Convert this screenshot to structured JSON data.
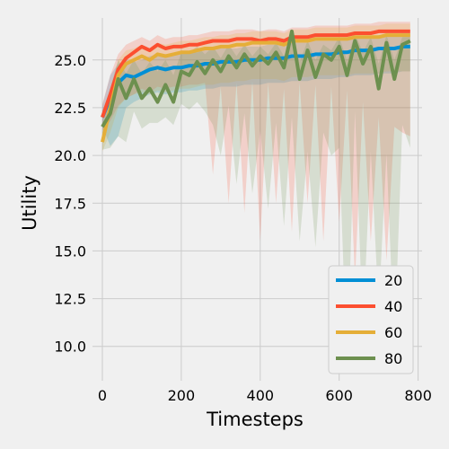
{
  "chart_data": {
    "type": "line",
    "title": "",
    "xlabel": "Timesteps",
    "ylabel": "Utility",
    "xlim": [
      -25,
      810
    ],
    "ylim": [
      8.2,
      27.2
    ],
    "x_ticks": [
      0,
      200,
      400,
      600,
      800
    ],
    "y_ticks": [
      10.0,
      12.5,
      15.0,
      17.5,
      20.0,
      22.5,
      25.0
    ],
    "x_tick_labels": [
      "0",
      "200",
      "400",
      "600",
      "800"
    ],
    "y_tick_labels": [
      "10.0",
      "12.5",
      "15.0",
      "17.5",
      "20.0",
      "22.5",
      "25.0"
    ],
    "grid": true,
    "legend": {
      "placement": "lower-right"
    },
    "x": [
      0,
      20,
      40,
      60,
      80,
      100,
      120,
      140,
      160,
      180,
      200,
      220,
      240,
      260,
      280,
      300,
      320,
      340,
      360,
      380,
      400,
      420,
      440,
      460,
      480,
      500,
      520,
      540,
      560,
      580,
      600,
      620,
      640,
      660,
      680,
      700,
      720,
      740,
      760,
      780
    ],
    "series": [
      {
        "name": "20",
        "color": "#008fd5",
        "values": [
          22.0,
          23.0,
          23.8,
          24.2,
          24.1,
          24.3,
          24.5,
          24.6,
          24.5,
          24.6,
          24.6,
          24.7,
          24.7,
          24.8,
          24.8,
          24.9,
          24.9,
          24.9,
          25.0,
          25.0,
          25.0,
          25.1,
          25.1,
          25.1,
          25.2,
          25.2,
          25.2,
          25.3,
          25.3,
          25.3,
          25.4,
          25.4,
          25.5,
          25.5,
          25.5,
          25.6,
          25.6,
          25.6,
          25.7,
          25.7
        ],
        "lower": [
          21.5,
          20.5,
          21.0,
          22.5,
          22.8,
          23.0,
          23.2,
          23.3,
          23.2,
          23.3,
          23.3,
          23.4,
          23.4,
          23.5,
          23.5,
          23.6,
          23.6,
          23.6,
          23.7,
          23.7,
          23.7,
          23.8,
          23.8,
          23.8,
          23.9,
          23.9,
          23.9,
          24.0,
          24.0,
          24.0,
          24.1,
          24.1,
          24.2,
          24.2,
          24.2,
          24.3,
          24.3,
          24.3,
          24.4,
          24.4
        ],
        "upper": [
          22.6,
          24.2,
          24.8,
          25.0,
          24.9,
          25.0,
          25.2,
          25.3,
          25.2,
          25.3,
          25.3,
          25.4,
          25.4,
          25.5,
          25.5,
          25.6,
          25.6,
          25.6,
          25.7,
          25.7,
          25.7,
          25.8,
          25.8,
          25.8,
          25.9,
          25.9,
          25.9,
          26.0,
          26.0,
          26.0,
          26.1,
          26.1,
          26.2,
          26.2,
          26.2,
          26.3,
          26.3,
          26.3,
          26.4,
          26.4
        ]
      },
      {
        "name": "40",
        "color": "#fc4f30",
        "values": [
          22.0,
          23.2,
          24.5,
          25.1,
          25.4,
          25.7,
          25.5,
          25.8,
          25.6,
          25.7,
          25.7,
          25.8,
          25.8,
          25.9,
          26.0,
          26.0,
          26.0,
          26.1,
          26.1,
          26.1,
          26.0,
          26.1,
          26.1,
          26.0,
          26.2,
          26.2,
          26.2,
          26.3,
          26.3,
          26.3,
          26.3,
          26.3,
          26.4,
          26.4,
          26.4,
          26.5,
          26.5,
          26.5,
          26.5,
          26.5
        ],
        "lower": [
          21.3,
          21.8,
          22.6,
          23.0,
          23.2,
          23.5,
          23.3,
          23.6,
          23.5,
          23.6,
          23.6,
          23.7,
          23.7,
          23.8,
          19.0,
          23.6,
          17.5,
          23.8,
          17.0,
          23.9,
          15.5,
          23.8,
          17.5,
          23.5,
          16.0,
          23.8,
          17.5,
          23.7,
          15.5,
          23.6,
          16.5,
          23.4,
          13.5,
          22.8,
          15.5,
          22.0,
          14.5,
          21.5,
          21.2,
          21.0
        ],
        "upper": [
          22.7,
          24.2,
          25.3,
          25.8,
          26.0,
          26.2,
          26.0,
          26.3,
          26.1,
          26.2,
          26.2,
          26.3,
          26.3,
          26.4,
          26.5,
          26.5,
          26.5,
          26.6,
          26.6,
          26.6,
          26.5,
          26.6,
          26.6,
          26.5,
          26.7,
          26.7,
          26.7,
          26.8,
          26.8,
          26.8,
          26.8,
          26.8,
          26.9,
          26.9,
          26.9,
          27.0,
          27.0,
          27.0,
          27.0,
          27.0
        ]
      },
      {
        "name": "60",
        "color": "#e5ae38",
        "values": [
          20.7,
          22.5,
          24.2,
          24.8,
          25.0,
          25.2,
          25.0,
          25.3,
          25.2,
          25.3,
          25.4,
          25.4,
          25.5,
          25.6,
          25.6,
          25.7,
          25.7,
          25.8,
          25.8,
          25.9,
          25.9,
          25.9,
          25.9,
          25.8,
          26.0,
          26.0,
          26.0,
          26.1,
          26.1,
          26.1,
          26.1,
          26.1,
          26.2,
          26.2,
          26.2,
          26.2,
          26.3,
          26.3,
          26.3,
          26.3
        ],
        "lower": [
          20.2,
          21.2,
          22.5,
          23.0,
          23.2,
          23.3,
          23.2,
          23.4,
          23.3,
          23.4,
          23.5,
          23.5,
          23.6,
          23.7,
          23.7,
          23.8,
          23.8,
          23.9,
          23.9,
          24.0,
          24.0,
          24.0,
          24.0,
          23.9,
          24.1,
          24.1,
          24.1,
          24.2,
          24.2,
          24.2,
          24.2,
          24.2,
          24.3,
          24.3,
          24.3,
          24.3,
          24.4,
          24.4,
          24.4,
          24.4
        ],
        "upper": [
          21.2,
          23.5,
          25.0,
          25.5,
          25.6,
          25.8,
          25.6,
          25.9,
          25.8,
          25.9,
          26.0,
          26.0,
          26.1,
          26.2,
          26.2,
          26.3,
          26.3,
          26.4,
          26.4,
          26.5,
          26.5,
          26.5,
          26.5,
          26.4,
          26.6,
          26.6,
          26.6,
          26.7,
          26.7,
          26.7,
          26.7,
          26.7,
          26.8,
          26.8,
          26.8,
          26.8,
          26.9,
          26.9,
          26.9,
          26.9
        ]
      },
      {
        "name": "80",
        "color": "#6d904f",
        "values": [
          21.5,
          22.2,
          24.0,
          23.0,
          24.0,
          23.0,
          23.5,
          22.8,
          23.7,
          22.8,
          24.4,
          24.2,
          24.9,
          24.3,
          25.0,
          24.4,
          25.2,
          24.6,
          25.3,
          24.7,
          25.2,
          24.8,
          25.4,
          24.6,
          26.5,
          24.0,
          25.5,
          24.1,
          25.3,
          25.0,
          25.7,
          24.2,
          26.0,
          24.8,
          25.7,
          23.5,
          25.9,
          24.0,
          25.8,
          26.0
        ],
        "lower": [
          20.3,
          20.4,
          21.0,
          20.7,
          22.3,
          21.4,
          21.7,
          21.7,
          22.0,
          21.6,
          22.7,
          22.4,
          22.8,
          22.3,
          21.6,
          20.0,
          22.6,
          18.5,
          22.2,
          18.0,
          21.3,
          17.2,
          21.7,
          16.3,
          22.0,
          15.5,
          20.2,
          15.2,
          21.2,
          20.0,
          20.4,
          8.8,
          22.3,
          10.8,
          20.2,
          12.0,
          20.1,
          9.9,
          21.6,
          20.4
        ],
        "upper": [
          22.3,
          23.5,
          25.0,
          24.3,
          25.0,
          24.3,
          24.9,
          24.4,
          25.0,
          24.2,
          25.4,
          25.4,
          25.7,
          25.3,
          25.7,
          25.1,
          25.8,
          25.2,
          25.8,
          25.2,
          25.7,
          25.3,
          25.9,
          25.2,
          26.6,
          24.9,
          26.0,
          25.0,
          25.8,
          25.5,
          26.2,
          25.0,
          26.4,
          25.4,
          26.2,
          24.8,
          26.3,
          25.0,
          26.2,
          26.2
        ]
      }
    ]
  }
}
